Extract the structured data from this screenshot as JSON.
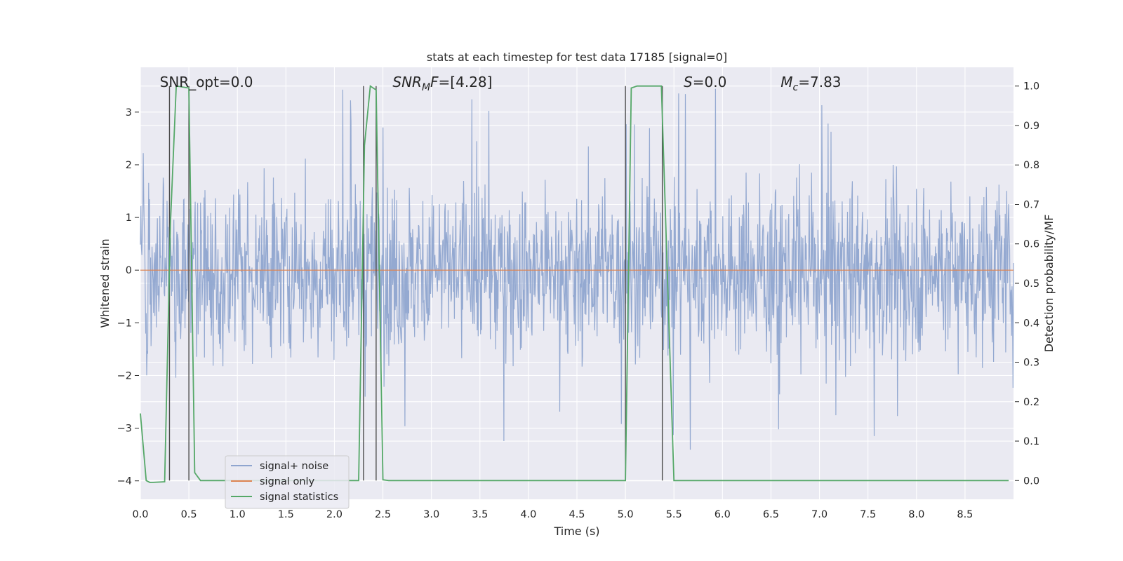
{
  "chart_data": {
    "type": "line",
    "title": "stats at each timestep for test data 17185 [signal=0]",
    "xlabel": "Time (s)",
    "ylabel": "Whitened strain",
    "y2label": "Detection probability/MF",
    "xlim": [
      0.0,
      9.0
    ],
    "ylim": [
      -4.35,
      3.85
    ],
    "y2lim": [
      -0.0475,
      1.0475
    ],
    "x_ticks": [
      "0.0",
      "0.5",
      "1.0",
      "1.5",
      "2.0",
      "2.5",
      "3.0",
      "3.5",
      "4.0",
      "4.5",
      "5.0",
      "5.5",
      "6.0",
      "6.5",
      "7.0",
      "7.5",
      "8.0",
      "8.5"
    ],
    "y_ticks": [
      "3",
      "2",
      "1",
      "0",
      "−1",
      "−2",
      "−3",
      "−4"
    ],
    "y2_ticks": [
      "1.0",
      "0.9",
      "0.8",
      "0.7",
      "0.6",
      "0.5",
      "0.4",
      "0.3",
      "0.2",
      "0.1",
      "0.0"
    ],
    "grid": true,
    "legend": {
      "position": "lower-left",
      "entries": [
        {
          "label": "signal+ noise",
          "color": "#8fa5cf"
        },
        {
          "label": "signal only",
          "color": "#dd8452"
        },
        {
          "label": "signal statistics",
          "color": "#55a868"
        }
      ]
    },
    "annotations": [
      {
        "text": "SNR_opt=0.0",
        "x": 0.2
      },
      {
        "prefix": "SNR",
        "sub": "M",
        "suffix": "F=[4.28]",
        "x": 2.6
      },
      {
        "prefix": "S",
        "sub": "",
        "suffix": "=0.0",
        "x": 5.6
      },
      {
        "prefix": "M",
        "sub": "c",
        "suffix": "=7.83",
        "x": 6.6
      }
    ],
    "series": [
      {
        "name": "signal+ noise",
        "color": "#8fa5cf",
        "x_range": [
          0.0,
          9.0
        ],
        "envelope_typical": [
          -1.9,
          2.1
        ],
        "peak_max": 3.5,
        "peak_min": -3.5
      },
      {
        "name": "signal only",
        "color": "#dd8452",
        "x": [
          0.0,
          9.0
        ],
        "y": [
          0.0,
          0.0
        ]
      },
      {
        "name": "signal statistics",
        "color": "#55a868",
        "axis": "right",
        "x": [
          0.0,
          0.06,
          0.1,
          0.25,
          0.31,
          0.37,
          0.5,
          0.56,
          0.62,
          0.68,
          2.25,
          2.31,
          2.37,
          2.43,
          2.5,
          2.56,
          2.62,
          5.0,
          5.06,
          5.12,
          5.37,
          5.5,
          5.56,
          5.62,
          8.95
        ],
        "y": [
          0.17,
          0.0,
          -0.005,
          -0.003,
          0.65,
          1.0,
          0.995,
          0.02,
          0.0,
          0.0,
          0.0,
          0.85,
          1.0,
          0.99,
          0.002,
          0.0,
          0.0,
          0.0,
          0.995,
          1.0,
          1.0,
          0.0,
          0.0,
          0.0,
          0.0
        ]
      }
    ],
    "vlines": [
      0.3,
      0.5,
      2.3,
      2.43,
      5.0,
      5.38
    ]
  }
}
